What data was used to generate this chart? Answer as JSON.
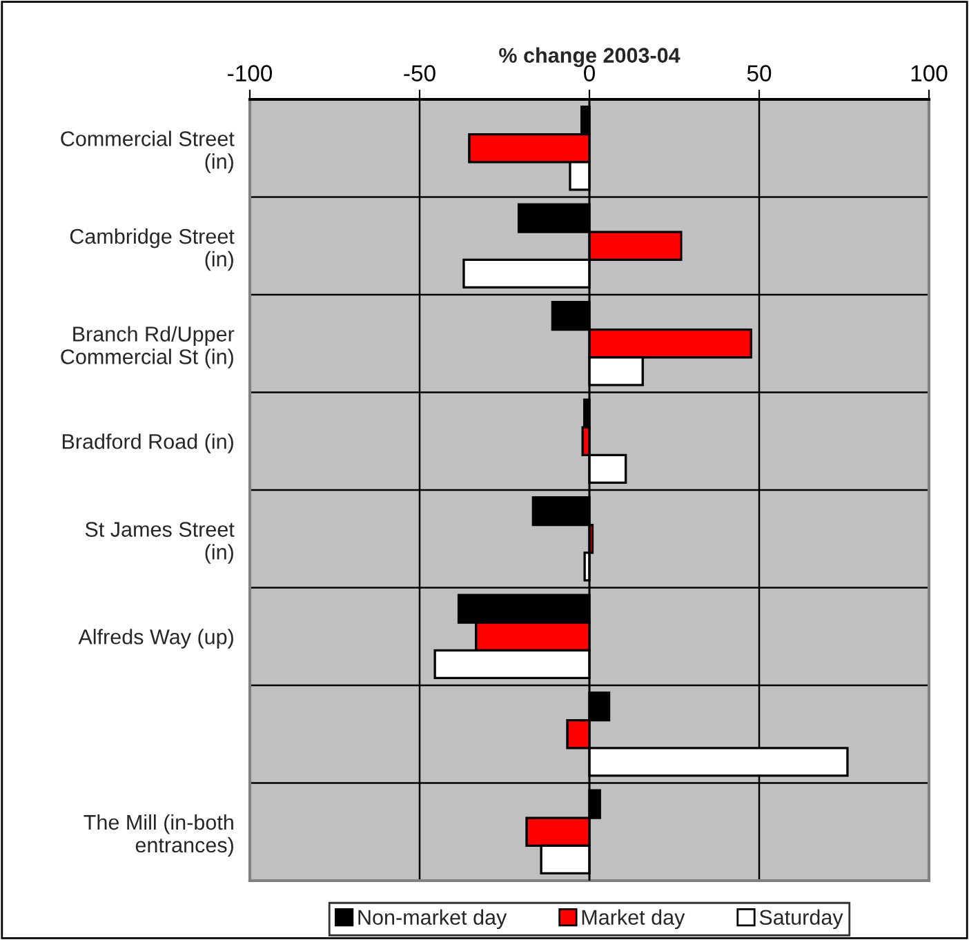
{
  "chart_data": {
    "type": "bar",
    "orientation": "horizontal",
    "xlabel": "% change 2003-04",
    "categories": [
      "Commercial Street (in)",
      "Cambridge Street (in)",
      "Branch Rd/Upper Commercial St (in)",
      "Bradford Road (in)",
      "St James Street (in)",
      "Alfreds Way (up)",
      null,
      "The Mill (in-both entrances)"
    ],
    "series": [
      {
        "name": "Non-market day",
        "color": "#000000",
        "values": [
          -2.3,
          -20.8,
          -10.9,
          -1.5,
          -16.6,
          -38.5,
          5.8,
          3.1
        ]
      },
      {
        "name": "Market day",
        "color": "#ff0000",
        "values": [
          -35.4,
          27,
          47.6,
          -2,
          0.9,
          -33.4,
          -6.5,
          -18.5
        ]
      },
      {
        "name": "Saturday",
        "color": "#ffffff",
        "values": [
          -5.7,
          -37,
          15.7,
          10.7,
          -1.4,
          -45.5,
          76,
          -14.2
        ]
      }
    ],
    "xlim": [
      -100,
      100
    ],
    "xticks": [
      -100,
      -50,
      0,
      50,
      100
    ],
    "grid": true,
    "legend": "bottom"
  }
}
